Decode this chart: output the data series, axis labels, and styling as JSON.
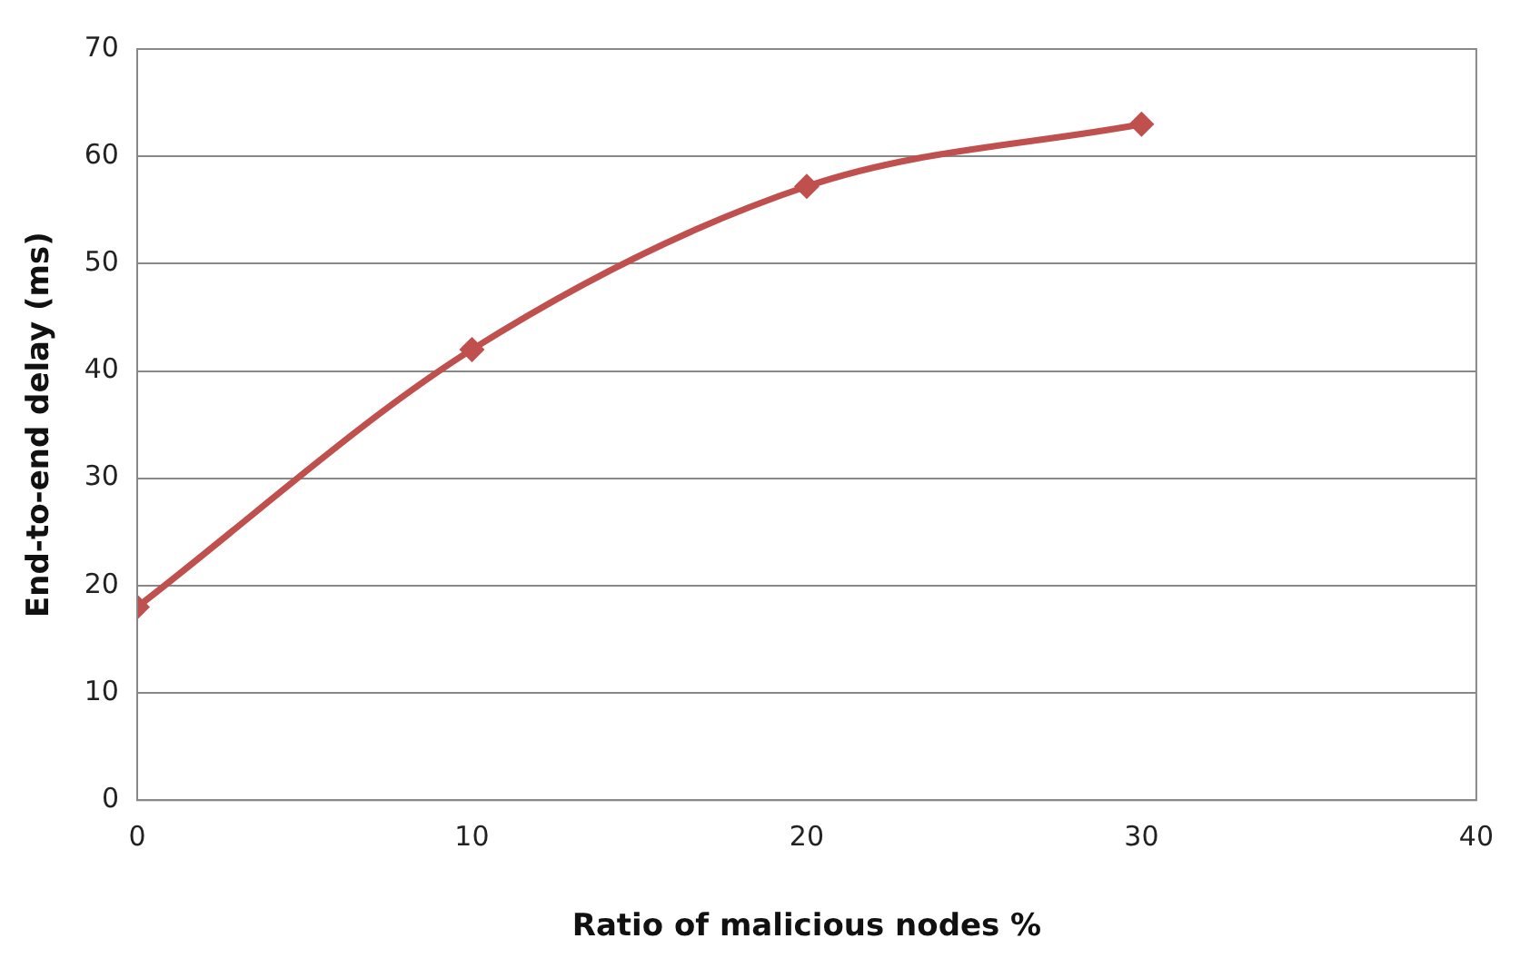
{
  "chart_data": {
    "type": "line",
    "xlabel": "Ratio of malicious nodes %",
    "ylabel": "End-to-end delay (ms)",
    "x": [
      0,
      10,
      20,
      30
    ],
    "series": [
      {
        "color": "#c0504d",
        "values": [
          18,
          42,
          57.2,
          63
        ]
      }
    ],
    "xlim": [
      0,
      40
    ],
    "xticks": [
      0,
      10,
      20,
      30,
      40
    ],
    "ylim": [
      0,
      70
    ],
    "yticks": [
      0,
      10,
      20,
      30,
      40,
      50,
      60,
      70
    ],
    "grid": "y",
    "legend": false,
    "marker": "diamond",
    "line_style": "solid"
  }
}
